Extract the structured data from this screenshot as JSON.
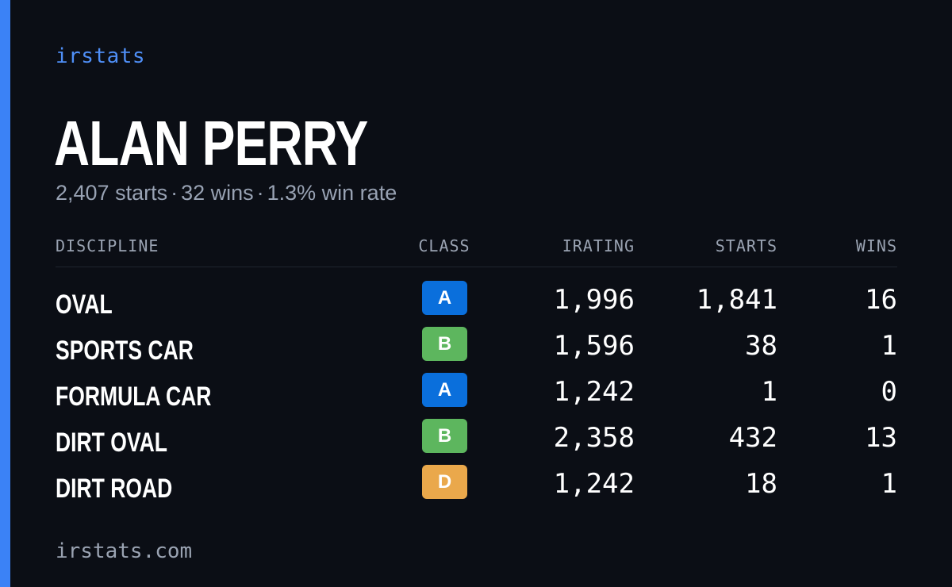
{
  "brand": "irstats",
  "driver": {
    "name": "ALAN PERRY",
    "starts_text": "2,407 starts",
    "wins_text": "32 wins",
    "win_rate_text": "1.3% win rate",
    "separator": "·"
  },
  "table": {
    "headers": {
      "discipline": "DISCIPLINE",
      "class": "CLASS",
      "irating": "IRATING",
      "starts": "STARTS",
      "wins": "WINS"
    },
    "rows": [
      {
        "discipline": "OVAL",
        "class": "A",
        "irating": "1,996",
        "starts": "1,841",
        "wins": "16"
      },
      {
        "discipline": "SPORTS CAR",
        "class": "B",
        "irating": "1,596",
        "starts": "38",
        "wins": "1"
      },
      {
        "discipline": "FORMULA CAR",
        "class": "A",
        "irating": "1,242",
        "starts": "1",
        "wins": "0"
      },
      {
        "discipline": "DIRT OVAL",
        "class": "B",
        "irating": "2,358",
        "starts": "432",
        "wins": "13"
      },
      {
        "discipline": "DIRT ROAD",
        "class": "D",
        "irating": "1,242",
        "starts": "18",
        "wins": "1"
      }
    ]
  },
  "class_colors": {
    "A": "#0a6fdc",
    "B": "#5db65e",
    "C": "#e5c63a",
    "D": "#eaa84b"
  },
  "footer": "irstats.com",
  "colors": {
    "accent": "#3b82f6",
    "background": "#0b0e15"
  }
}
